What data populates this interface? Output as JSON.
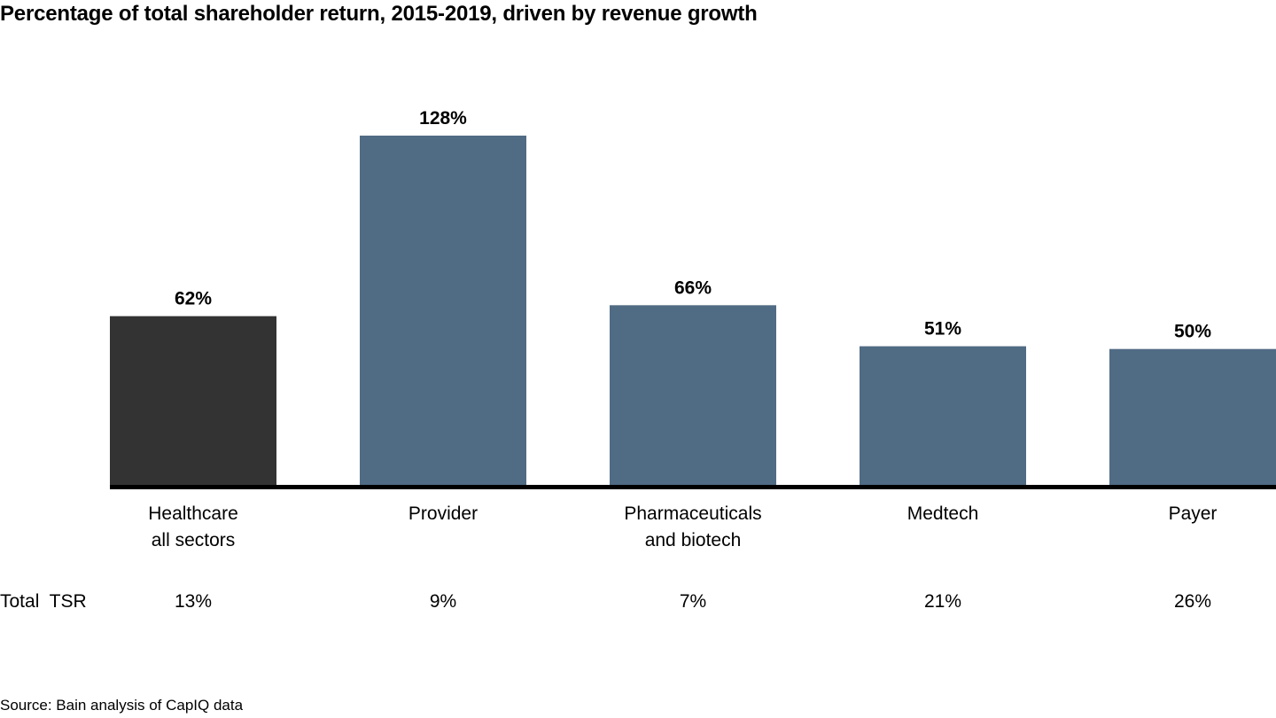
{
  "chart_data": {
    "type": "bar",
    "title": "Percentage of total shareholder return, 2015-2019, driven by revenue growth",
    "categories": [
      "Healthcare all sectors",
      "Provider",
      "Pharmaceuticals and biotech",
      "Medtech",
      "Payer"
    ],
    "category_lines": [
      [
        "Healthcare",
        "all sectors"
      ],
      [
        "Provider"
      ],
      [
        "Pharmaceuticals",
        "and biotech"
      ],
      [
        "Medtech"
      ],
      [
        "Payer"
      ]
    ],
    "values": [
      62,
      128,
      66,
      51,
      50
    ],
    "value_labels": [
      "62%",
      "128%",
      "66%",
      "51%",
      "50%"
    ],
    "colors": [
      "#333333",
      "#506b84",
      "#506b84",
      "#506b84",
      "#506b84"
    ],
    "ylim": [
      0,
      128
    ],
    "xlabel": "",
    "ylabel": "",
    "grid": false,
    "legend": "none",
    "secondary_row": {
      "label": "Total  TSR",
      "values": [
        "13%",
        "9%",
        "7%",
        "21%",
        "26%"
      ]
    }
  },
  "source": "Source: Bain analysis of CapIQ data"
}
